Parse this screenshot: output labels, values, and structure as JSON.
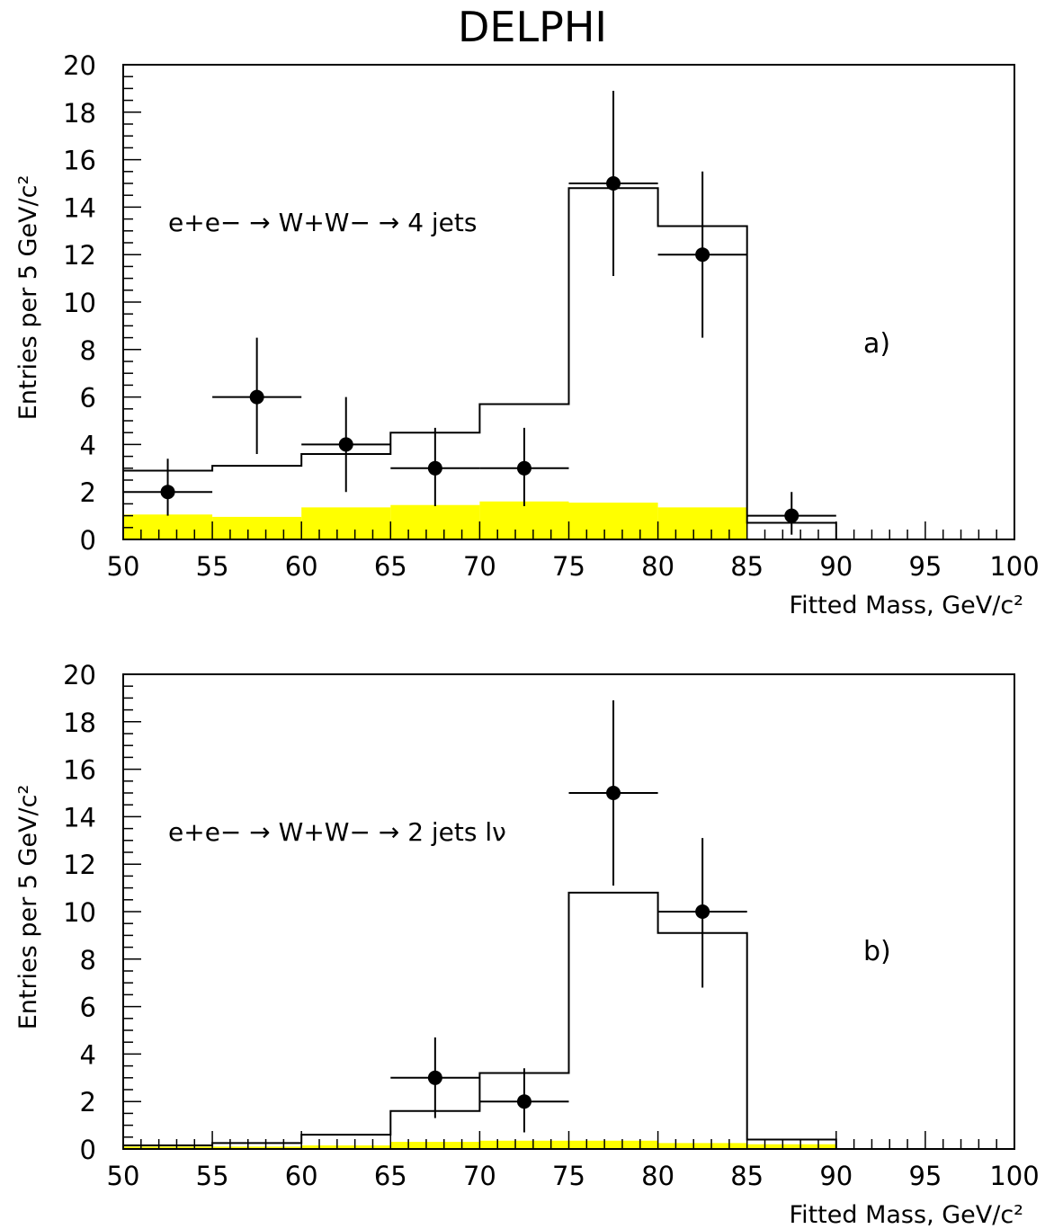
{
  "title": "DELPHI",
  "colors": {
    "histogram": "#000000",
    "background_fill": "#ffff00",
    "points": "#000000"
  },
  "chart_data": [
    {
      "type": "bar",
      "panel_label": "a)",
      "process_label": {
        "main": "e+e−  → W+W− → 4 jets"
      },
      "xlabel": "Fitted Mass, GeV/c²",
      "ylabel": "Entries per 5 GeV/c²",
      "xlim": [
        50,
        100
      ],
      "ylim": [
        0,
        20
      ],
      "x_ticks": [
        50,
        55,
        60,
        65,
        70,
        75,
        80,
        85,
        90,
        95,
        100
      ],
      "y_ticks": [
        0,
        2,
        4,
        6,
        8,
        10,
        12,
        14,
        16,
        18,
        20
      ],
      "bin_edges": [
        50,
        55,
        60,
        65,
        70,
        75,
        80,
        85,
        90,
        95,
        100
      ],
      "series": [
        {
          "kind": "histogram",
          "values": [
            2.9,
            3.1,
            3.6,
            4.5,
            5.7,
            14.8,
            13.2,
            0.7,
            0,
            0
          ]
        },
        {
          "kind": "filled_histogram",
          "values": [
            1.05,
            0.95,
            1.35,
            1.45,
            1.6,
            1.55,
            1.35,
            0,
            0,
            0
          ]
        },
        {
          "kind": "data_points",
          "points": [
            {
              "x": 52.5,
              "y": 2,
              "yerr_low": 1.0,
              "yerr_high": 1.4
            },
            {
              "x": 57.5,
              "y": 6,
              "yerr_low": 2.4,
              "yerr_high": 2.5
            },
            {
              "x": 62.5,
              "y": 4,
              "yerr_low": 2.0,
              "yerr_high": 2.0
            },
            {
              "x": 67.5,
              "y": 3,
              "yerr_low": 1.6,
              "yerr_high": 1.7
            },
            {
              "x": 72.5,
              "y": 3,
              "yerr_low": 1.6,
              "yerr_high": 1.7
            },
            {
              "x": 77.5,
              "y": 15,
              "yerr_low": 3.9,
              "yerr_high": 3.9
            },
            {
              "x": 82.5,
              "y": 12,
              "yerr_low": 3.5,
              "yerr_high": 3.5
            },
            {
              "x": 87.5,
              "y": 1,
              "yerr_low": 0.8,
              "yerr_high": 1.0
            }
          ]
        }
      ]
    },
    {
      "type": "bar",
      "panel_label": "b)",
      "process_label": {
        "main": "e+e−  → W+W− → 2 jets lν"
      },
      "xlabel": "Fitted Mass, GeV/c²",
      "ylabel": "Entries per 5 GeV/c²",
      "xlim": [
        50,
        100
      ],
      "ylim": [
        0,
        20
      ],
      "x_ticks": [
        50,
        55,
        60,
        65,
        70,
        75,
        80,
        85,
        90,
        95,
        100
      ],
      "y_ticks": [
        0,
        2,
        4,
        6,
        8,
        10,
        12,
        14,
        16,
        18,
        20
      ],
      "bin_edges": [
        50,
        55,
        60,
        65,
        70,
        75,
        80,
        85,
        90,
        95,
        100
      ],
      "series": [
        {
          "kind": "histogram",
          "values": [
            0.15,
            0.25,
            0.6,
            1.6,
            3.2,
            10.8,
            9.1,
            0.4,
            0,
            0
          ]
        },
        {
          "kind": "filled_histogram",
          "values": [
            0.1,
            0.1,
            0.15,
            0.3,
            0.35,
            0.35,
            0.25,
            0.2,
            0,
            0
          ]
        },
        {
          "kind": "data_points",
          "points": [
            {
              "x": 67.5,
              "y": 3,
              "yerr_low": 1.7,
              "yerr_high": 1.7
            },
            {
              "x": 72.5,
              "y": 2,
              "yerr_low": 1.3,
              "yerr_high": 1.4
            },
            {
              "x": 77.5,
              "y": 15,
              "yerr_low": 3.9,
              "yerr_high": 3.9
            },
            {
              "x": 82.5,
              "y": 10,
              "yerr_low": 3.2,
              "yerr_high": 3.1
            }
          ]
        }
      ]
    }
  ]
}
